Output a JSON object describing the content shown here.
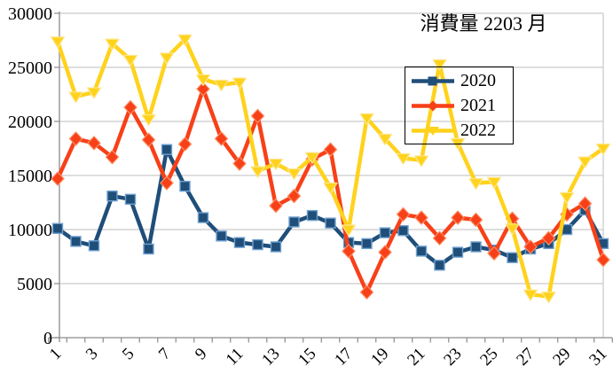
{
  "title": "消費量 2203 月",
  "colors": {
    "background": "#FFFFFF",
    "grid": "#C9C9C9",
    "axis": "#8C8C8C",
    "text": "#000000",
    "legend_border": "#000000",
    "series_2020": "#1F4E79",
    "series_2021": "#F84018",
    "series_2022": "#FFD21C"
  },
  "chart_data": {
    "type": "line",
    "title": "消費量 2203 月",
    "xlabel": "",
    "ylabel": "",
    "x": [
      1,
      2,
      3,
      4,
      5,
      6,
      7,
      8,
      9,
      10,
      11,
      12,
      13,
      14,
      15,
      16,
      17,
      18,
      19,
      20,
      21,
      22,
      23,
      24,
      25,
      26,
      27,
      28,
      29,
      30,
      31
    ],
    "xtick_labels": [
      "1",
      "3",
      "5",
      "7",
      "9",
      "11",
      "13",
      "15",
      "17",
      "19",
      "21",
      "23",
      "25",
      "27",
      "29",
      "31"
    ],
    "yticks": [
      0,
      5000,
      10000,
      15000,
      20000,
      25000,
      30000
    ],
    "ylim": [
      0,
      30000
    ],
    "grid": true,
    "legend_position": "upper-right-inside",
    "series": [
      {
        "name": "2020",
        "marker": "square",
        "color": "#1F4E79",
        "halo": "#6FA0CF",
        "values": [
          10100,
          8900,
          8500,
          13100,
          12800,
          8200,
          17400,
          14000,
          11100,
          9400,
          8800,
          8600,
          8400,
          10700,
          11300,
          10600,
          8800,
          8700,
          9700,
          9900,
          8000,
          6700,
          7900,
          8400,
          8100,
          7400,
          8200,
          8700,
          10000,
          11800,
          8700
        ]
      },
      {
        "name": "2021",
        "marker": "diamond",
        "color": "#F84018",
        "halo": "#FC8F66",
        "values": [
          14700,
          18400,
          18000,
          16700,
          21300,
          18300,
          14300,
          17900,
          23000,
          18400,
          16100,
          20500,
          12200,
          13100,
          16500,
          17400,
          8000,
          4200,
          7900,
          11400,
          11100,
          9200,
          11100,
          10900,
          7800,
          11000,
          8400,
          9200,
          11400,
          12400,
          7200
        ]
      },
      {
        "name": "2022",
        "marker": "triangle-down",
        "color": "#FFD21C",
        "halo": "#FFE792",
        "values": [
          27400,
          22300,
          22700,
          27200,
          25700,
          20200,
          25900,
          27600,
          23900,
          23400,
          23600,
          15400,
          16100,
          15200,
          16700,
          13900,
          10000,
          20300,
          18400,
          16600,
          16400,
          25300,
          18000,
          14300,
          14400,
          10100,
          4000,
          3800,
          13000,
          16300,
          17500
        ]
      }
    ]
  }
}
